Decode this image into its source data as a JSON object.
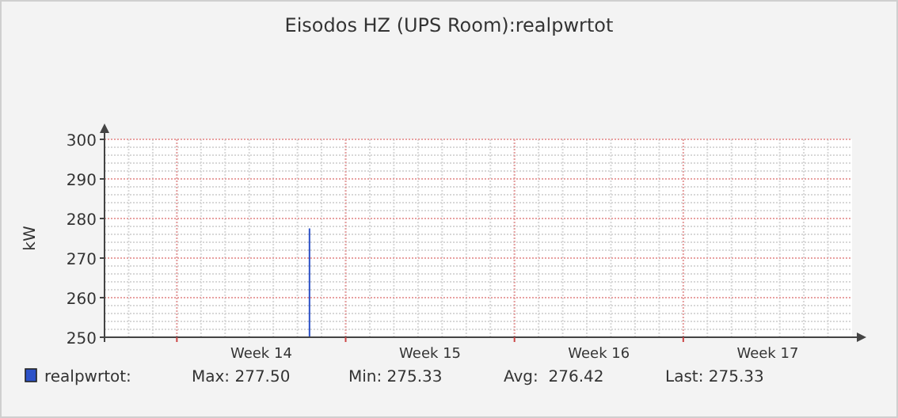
{
  "chart_data": {
    "type": "bar",
    "title": "Eisodos HZ (UPS Room):realpwrtot",
    "ylabel": "kW",
    "categories": [
      null,
      null,
      null,
      null,
      null,
      null,
      "Week 14",
      null,
      null,
      null,
      null,
      null,
      null,
      "Week 15",
      null,
      null,
      null,
      null,
      null,
      null,
      "Week 16",
      null,
      null,
      null,
      null,
      null,
      null,
      "Week 17",
      null,
      null,
      null
    ],
    "ylim": [
      250,
      300
    ],
    "yticks": [
      250,
      260,
      270,
      280,
      290,
      300
    ],
    "grid": true,
    "legend": "bottom",
    "series": [
      {
        "name": "realpwrtot:",
        "color": "#2d52c8",
        "values": [
          null,
          null,
          null,
          null,
          null,
          null,
          null,
          null,
          277.5,
          null,
          null,
          null,
          null,
          null,
          null,
          null,
          null,
          null,
          null,
          null,
          null,
          null,
          null,
          null,
          null,
          null,
          null,
          null,
          null,
          null,
          null
        ]
      }
    ],
    "annotations": [
      "Max: 277.50",
      "Min: 275.33",
      "Avg:  276.42",
      "Last: 275.33"
    ]
  }
}
